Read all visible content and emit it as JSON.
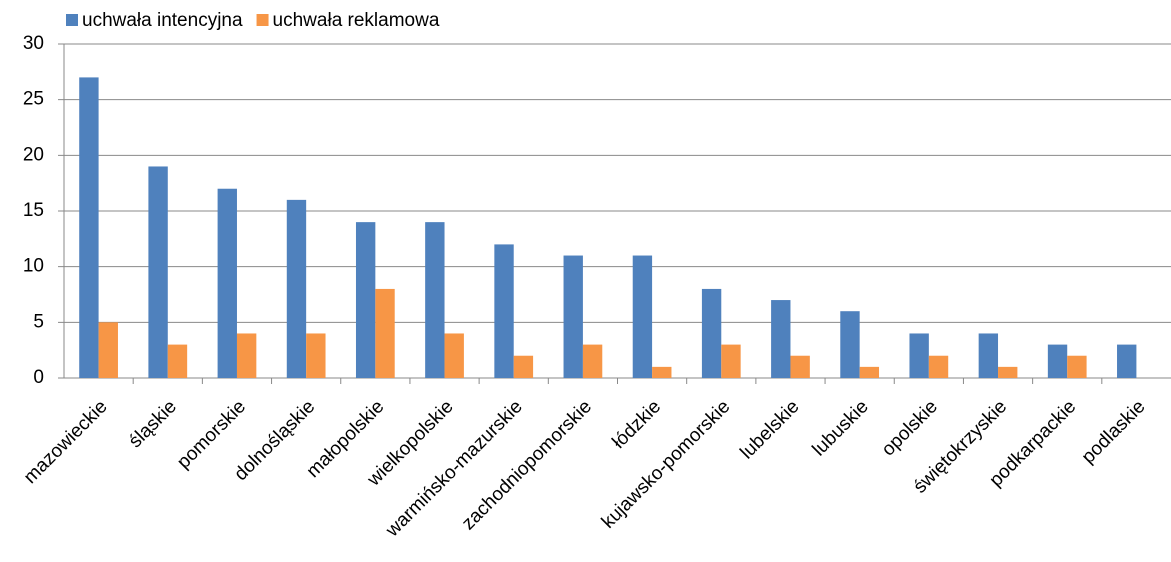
{
  "chart_data": {
    "type": "bar",
    "categories": [
      "mazowieckie",
      "śląskie",
      "pomorskie",
      "dolnośląskie",
      "małopolskie",
      "wielkopolskie",
      "warmińsko-mazurskie",
      "zachodniopomorskie",
      "łódzkie",
      "kujawsko-pomorskie",
      "lubelskie",
      "lubuskie",
      "opolskie",
      "świętokrzyskie",
      "podkarpackie",
      "podlaskie"
    ],
    "series": [
      {
        "name": "uchwała intencyjna",
        "color": "#4f81bd",
        "values": [
          27,
          19,
          17,
          16,
          14,
          14,
          12,
          11,
          11,
          8,
          7,
          6,
          4,
          4,
          3,
          3
        ]
      },
      {
        "name": "uchwała reklamowa",
        "color": "#f79646",
        "values": [
          5,
          3,
          4,
          4,
          8,
          4,
          2,
          3,
          1,
          3,
          2,
          1,
          2,
          1,
          2,
          0
        ]
      }
    ],
    "ylim": [
      0,
      30
    ],
    "yticks": [
      0,
      5,
      10,
      15,
      20,
      25,
      30
    ],
    "grid": true,
    "legend": "top-left"
  }
}
